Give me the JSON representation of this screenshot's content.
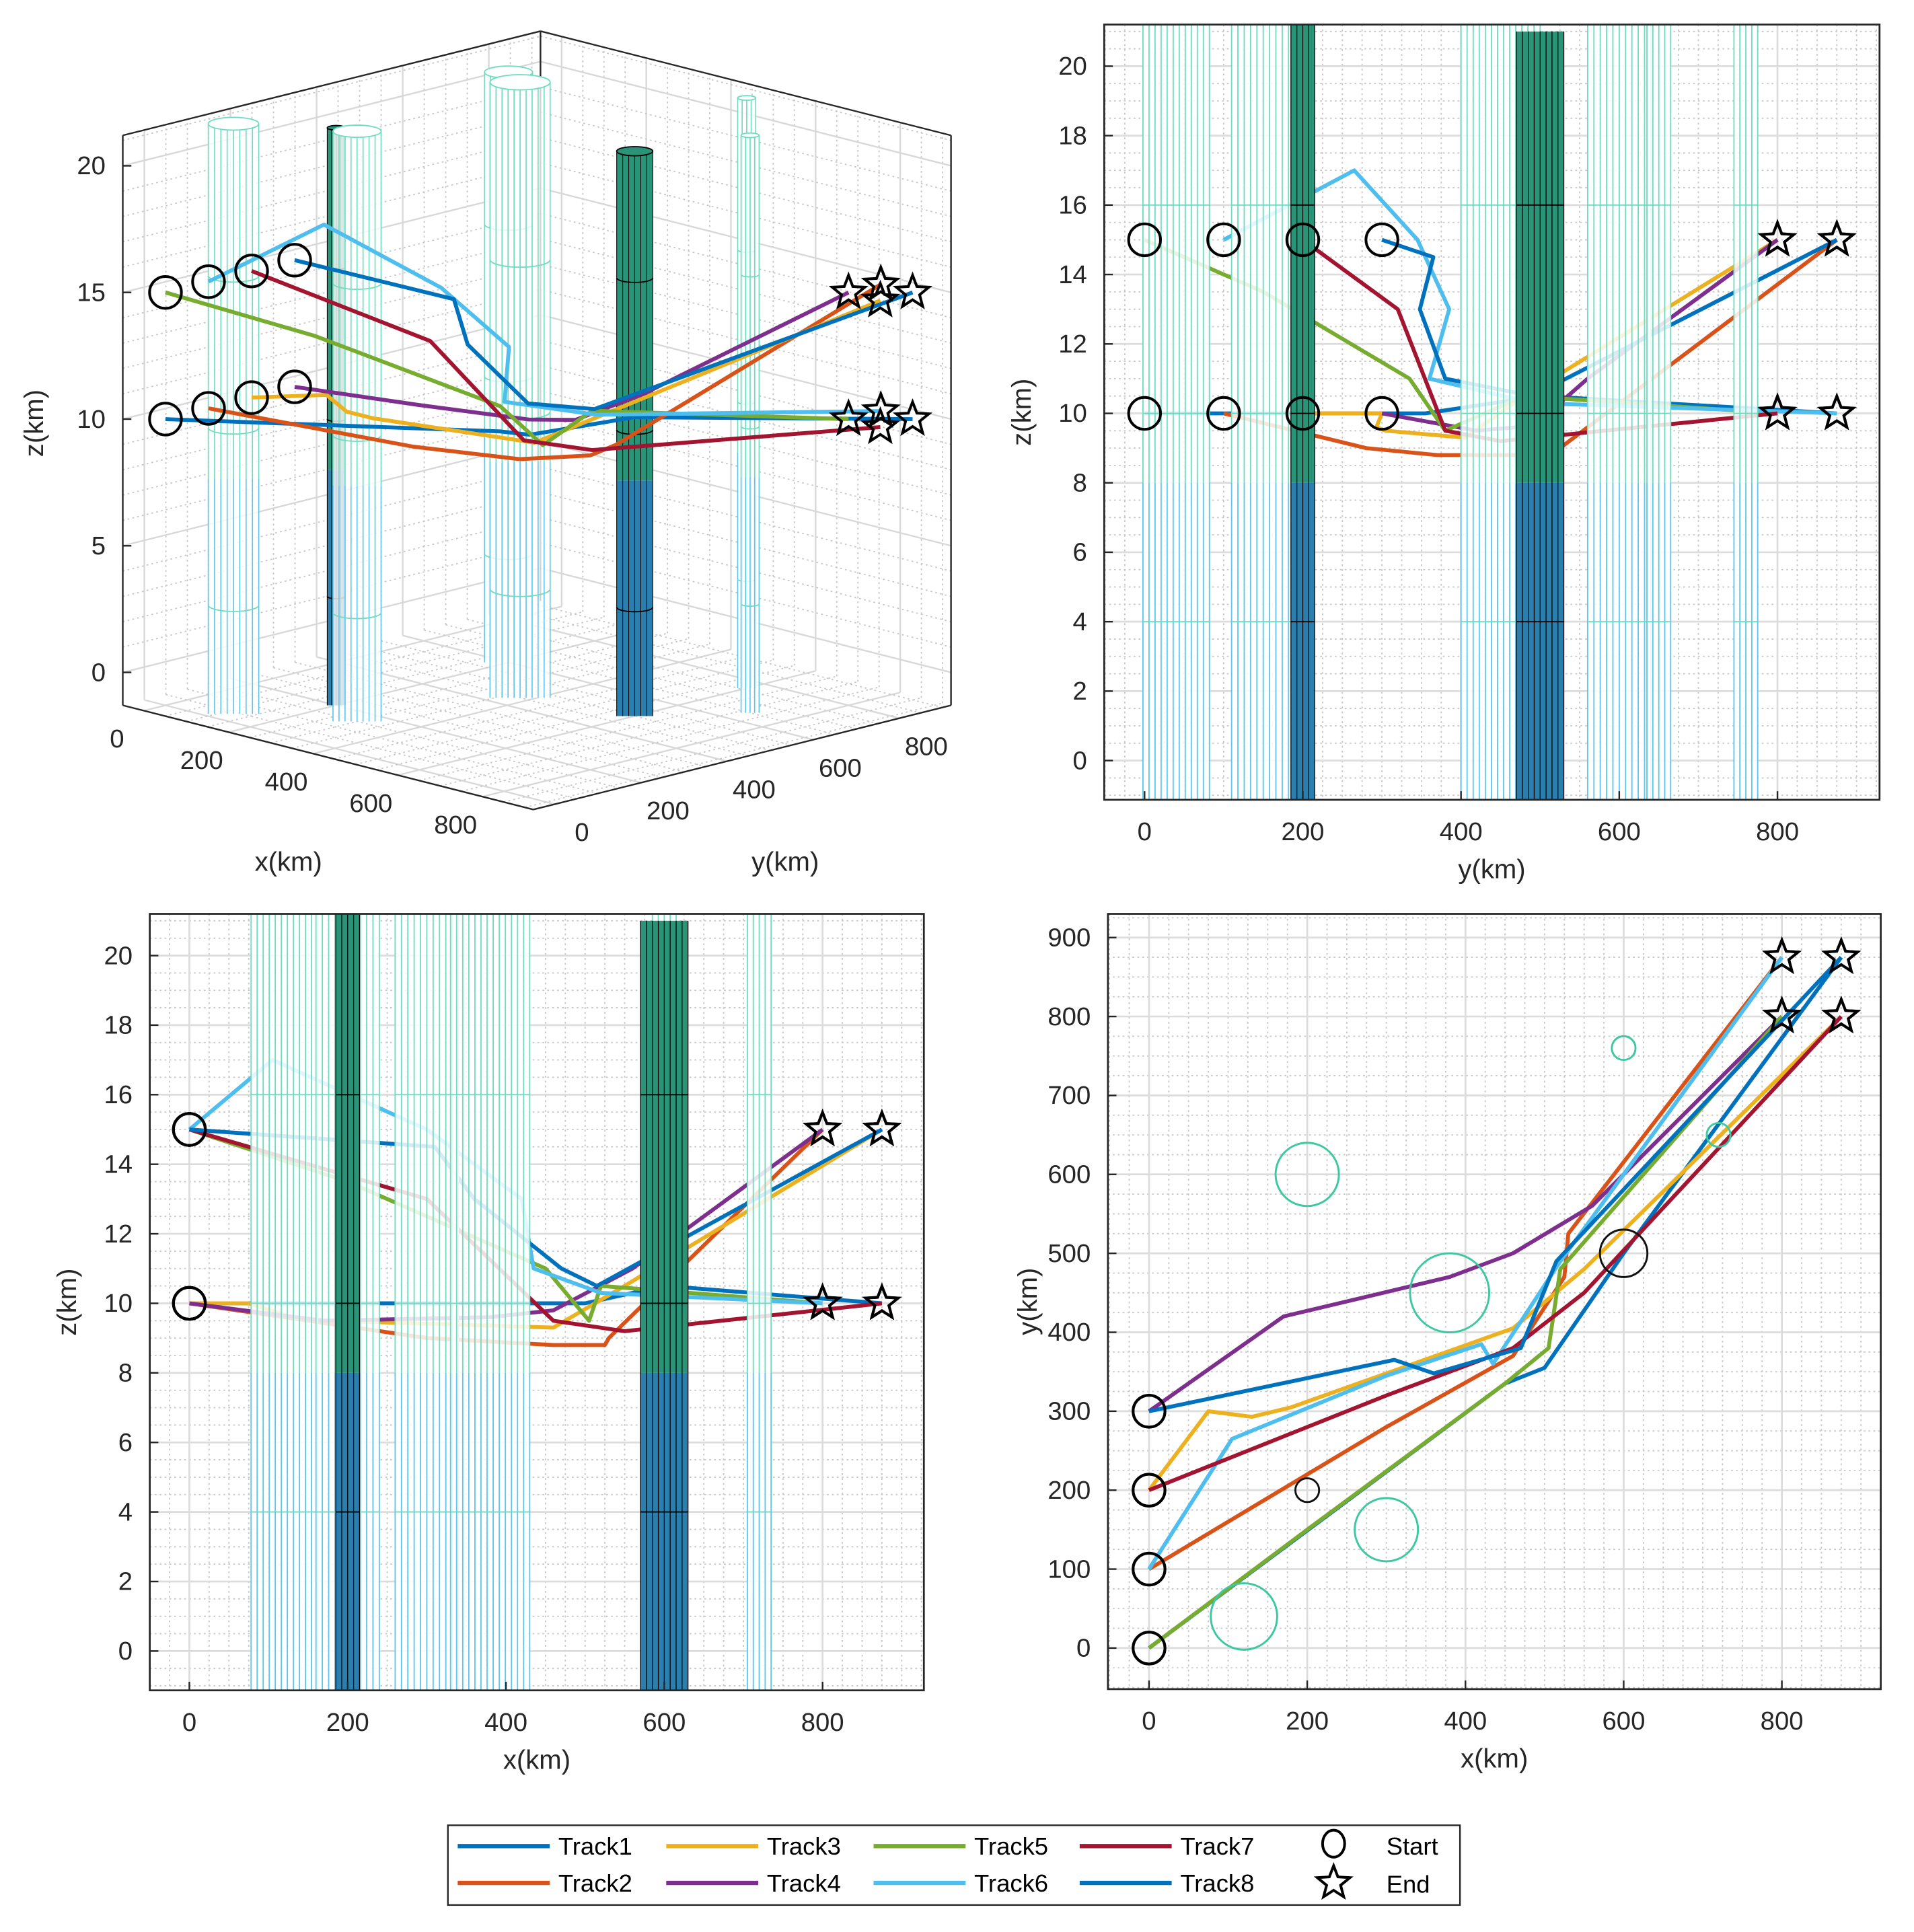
{
  "chart_data": {
    "type": "line",
    "panels": [
      {
        "view": "3d",
        "xlabel": "x(km)",
        "ylabel": "y(km)",
        "zlabel": "z(km)",
        "xticks": [
          0,
          200,
          400,
          600,
          800
        ],
        "yticks": [
          0,
          200,
          400,
          600,
          800
        ],
        "zticks": [
          0,
          5,
          10,
          15,
          20
        ],
        "xlim": [
          -50,
          920
        ],
        "ylim": [
          -50,
          920
        ],
        "zlim": [
          -1.3,
          21.2
        ],
        "grid": true
      },
      {
        "view": "y-z",
        "xlabel": "y(km)",
        "ylabel": "z(km)",
        "xticks": [
          0,
          200,
          400,
          600,
          800
        ],
        "yticks": [
          0,
          2,
          4,
          6,
          8,
          10,
          12,
          14,
          16,
          18,
          20
        ],
        "xlim": [
          -51,
          929
        ],
        "ylim": [
          -1.13,
          21.2
        ],
        "grid": true
      },
      {
        "view": "x-z",
        "xlabel": "x(km)",
        "ylabel": "z(km)",
        "xticks": [
          0,
          200,
          400,
          600,
          800
        ],
        "yticks": [
          0,
          2,
          4,
          6,
          8,
          10,
          12,
          14,
          16,
          18,
          20
        ],
        "xlim": [
          -50,
          928
        ],
        "ylim": [
          -1.13,
          21.2
        ],
        "grid": true
      },
      {
        "view": "x-y",
        "xlabel": "x(km)",
        "ylabel": "y(km)",
        "xticks": [
          0,
          200,
          400,
          600,
          800
        ],
        "yticks": [
          0,
          100,
          200,
          300,
          400,
          500,
          600,
          700,
          800,
          900
        ],
        "xlim": [
          -52,
          925
        ],
        "ylim": [
          -52,
          930
        ],
        "grid": true
      }
    ],
    "series": [
      {
        "name": "Track1",
        "color": "#0072BD",
        "points": [
          [
            0,
            0,
            10
          ],
          [
            450,
            335,
            10
          ],
          [
            500,
            355,
            10
          ],
          [
            600,
            500,
            10.5
          ],
          [
            875,
            875,
            10
          ]
        ]
      },
      {
        "name": "Track2",
        "color": "#D95319",
        "points": [
          [
            0,
            100,
            10
          ],
          [
            300,
            280,
            9
          ],
          [
            460,
            370,
            8.8
          ],
          [
            525,
            470,
            8.8
          ],
          [
            530,
            525,
            9
          ],
          [
            800,
            875,
            15
          ]
        ]
      },
      {
        "name": "Track3",
        "color": "#EDB120",
        "points": [
          [
            0,
            200,
            10
          ],
          [
            75,
            300,
            10
          ],
          [
            130,
            293,
            9.6
          ],
          [
            180,
            305,
            9.5
          ],
          [
            460,
            405,
            9.3
          ],
          [
            550,
            480,
            10.5
          ],
          [
            875,
            800,
            15
          ]
        ]
      },
      {
        "name": "Track4",
        "color": "#7E2F8E",
        "points": [
          [
            0,
            300,
            10
          ],
          [
            170,
            420,
            9.5
          ],
          [
            380,
            470,
            9.6
          ],
          [
            460,
            500,
            9.8
          ],
          [
            560,
            560,
            11
          ],
          [
            800,
            800,
            15
          ]
        ]
      },
      {
        "name": "Track5",
        "color": "#77AC30",
        "points": [
          [
            0,
            0,
            15
          ],
          [
            200,
            150,
            13.5
          ],
          [
            450,
            335,
            11
          ],
          [
            505,
            380,
            9.5
          ],
          [
            520,
            480,
            10.5
          ],
          [
            800,
            800,
            10
          ]
        ]
      },
      {
        "name": "Track6",
        "color": "#4DBEEE",
        "points": [
          [
            0,
            100,
            15
          ],
          [
            105,
            265,
            17
          ],
          [
            300,
            345,
            15
          ],
          [
            420,
            385,
            13
          ],
          [
            435,
            360,
            11
          ],
          [
            520,
            490,
            10.3
          ],
          [
            800,
            875,
            10
          ]
        ]
      },
      {
        "name": "Track7",
        "color": "#A2142F",
        "points": [
          [
            0,
            200,
            15
          ],
          [
            300,
            320,
            13
          ],
          [
            460,
            380,
            9.5
          ],
          [
            550,
            450,
            9.2
          ],
          [
            875,
            800,
            10
          ]
        ]
      },
      {
        "name": "Track8",
        "color": "#0072BD",
        "points": [
          [
            0,
            300,
            15
          ],
          [
            310,
            365,
            14.5
          ],
          [
            360,
            348,
            13
          ],
          [
            470,
            380,
            11
          ],
          [
            515,
            490,
            10.5
          ],
          [
            875,
            875,
            15
          ]
        ]
      }
    ],
    "obstacles": [
      {
        "x": 120,
        "y": 40,
        "r": 42,
        "height": 22,
        "kind": "light"
      },
      {
        "x": 200,
        "y": 600,
        "r": 40,
        "height": 22,
        "kind": "light"
      },
      {
        "x": 300,
        "y": 150,
        "r": 40,
        "height": 22,
        "kind": "light"
      },
      {
        "x": 380,
        "y": 450,
        "r": 50,
        "height": 23,
        "kind": "light"
      },
      {
        "x": 600,
        "y": 760,
        "r": 15,
        "height": 22,
        "kind": "light"
      },
      {
        "x": 720,
        "y": 650,
        "r": 15,
        "height": 21.5,
        "kind": "light"
      },
      {
        "x": 200,
        "y": 200,
        "r": 15,
        "height": 21.5,
        "kind": "dark"
      },
      {
        "x": 600,
        "y": 500,
        "r": 30,
        "height": 21,
        "kind": "dark"
      }
    ],
    "legend": {
      "placement": "bottom",
      "entries": [
        "Track1",
        "Track3",
        "Track5",
        "Track7",
        "Start",
        "Track2",
        "Track4",
        "Track6",
        "Track8",
        "End"
      ],
      "start_label": "Start",
      "end_label": "End"
    }
  }
}
